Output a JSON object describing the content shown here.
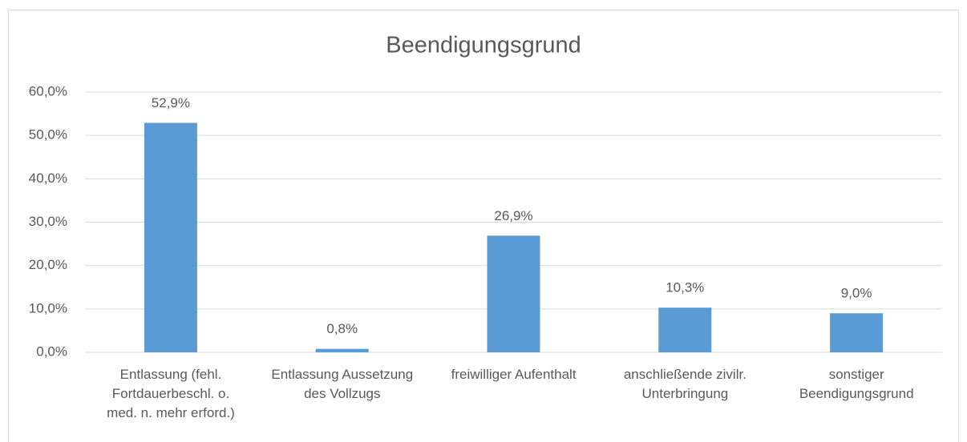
{
  "chart_data": {
    "type": "bar",
    "title": "Beendigungsgrund",
    "categories": [
      "Entlassung (fehl. Fortdauerbeschl. o. med. n. mehr erford.)",
      "Entlassung Aussetzung des Vollzugs",
      "freiwilliger Aufenthalt",
      "anschließende zivilr. Unterbringung",
      "sonstiger Beendigungsgrund"
    ],
    "values": [
      52.9,
      0.8,
      26.9,
      10.3,
      9.0
    ],
    "value_labels": [
      "52,9%",
      "0,8%",
      "26,9%",
      "10,3%",
      "9,0%"
    ],
    "color": "#5b9bd5",
    "ylim": [
      0,
      60
    ],
    "yticks": [
      {
        "value": 0,
        "label": "0,0%"
      },
      {
        "value": 10,
        "label": "10,0%"
      },
      {
        "value": 20,
        "label": "20,0%"
      },
      {
        "value": 30,
        "label": "30,0%"
      },
      {
        "value": 40,
        "label": "40,0%"
      },
      {
        "value": 50,
        "label": "50,0%"
      },
      {
        "value": 60,
        "label": "60,0%"
      }
    ],
    "grid": true
  }
}
